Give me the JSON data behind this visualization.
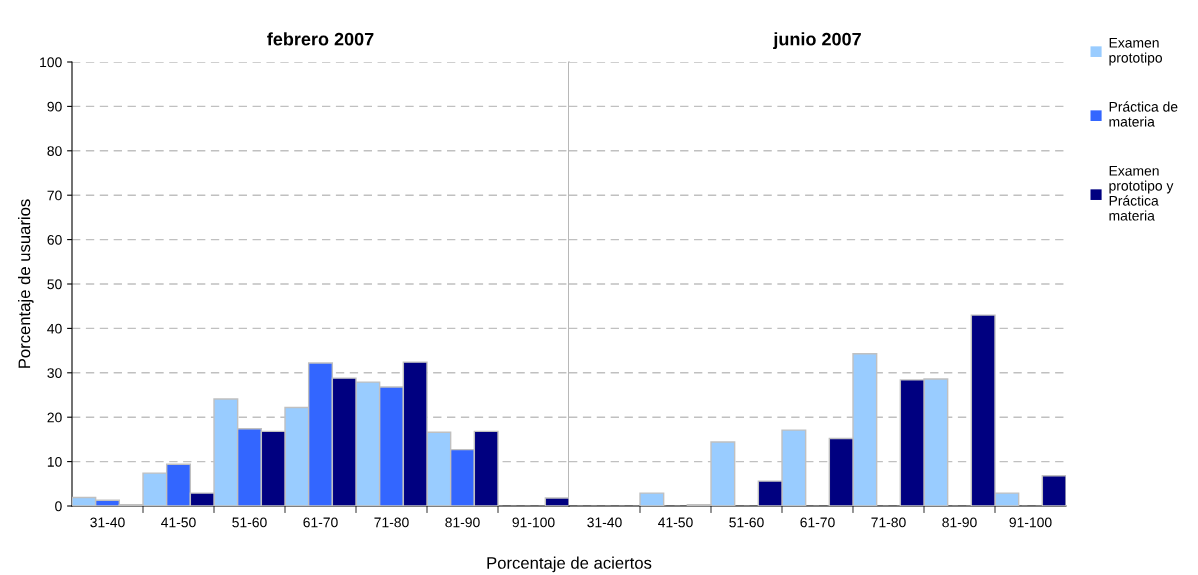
{
  "chart_data": [
    {
      "type": "bar",
      "title": "febrero 2007",
      "xlabel": "Porcentaje de aciertos",
      "ylabel": "Porcentaje de usuarios",
      "categories": [
        "31-40",
        "41-50",
        "51-60",
        "61-70",
        "71-80",
        "81-90",
        "91-100"
      ],
      "ylim": [
        0,
        100
      ],
      "yticks": [
        0,
        10,
        20,
        30,
        40,
        50,
        60,
        70,
        80,
        90,
        100
      ],
      "grid": "y",
      "legend": "right",
      "series": [
        {
          "name": "Examen\nprototipo",
          "color": "#99ccff",
          "values": [
            1.9,
            7.4,
            24.1,
            22.2,
            27.9,
            16.6,
            0
          ]
        },
        {
          "name": "Práctica de\nmateria",
          "color": "#3366ff",
          "values": [
            1.3,
            9.4,
            17.4,
            32.2,
            26.8,
            12.7,
            0
          ]
        },
        {
          "name": "Examen\nprototipo y\nPráctica\nmateria",
          "color": "#000080",
          "values": [
            0.3,
            2.9,
            16.8,
            28.8,
            32.4,
            16.8,
            1.8
          ]
        }
      ]
    },
    {
      "type": "bar",
      "title": "junio 2007",
      "categories": [
        "31-40",
        "41-50",
        "51-60",
        "61-70",
        "71-80",
        "81-90",
        "91-100"
      ],
      "ylim": [
        0,
        100
      ],
      "yticks": [
        0,
        10,
        20,
        30,
        40,
        50,
        60,
        70,
        80,
        90,
        100
      ],
      "grid": "y",
      "tick_labels": "x",
      "series": [
        {
          "color": "#99ccff",
          "values": [
            0,
            2.9,
            14.4,
            17.1,
            34.3,
            28.6,
            2.9
          ]
        },
        {
          "color": "#3366ff",
          "values": [
            null,
            null,
            null,
            null,
            null,
            null,
            null
          ]
        },
        {
          "color": "#000080",
          "values": [
            0,
            0.3,
            5.6,
            15.2,
            28.4,
            43.0,
            6.8
          ]
        }
      ]
    }
  ]
}
